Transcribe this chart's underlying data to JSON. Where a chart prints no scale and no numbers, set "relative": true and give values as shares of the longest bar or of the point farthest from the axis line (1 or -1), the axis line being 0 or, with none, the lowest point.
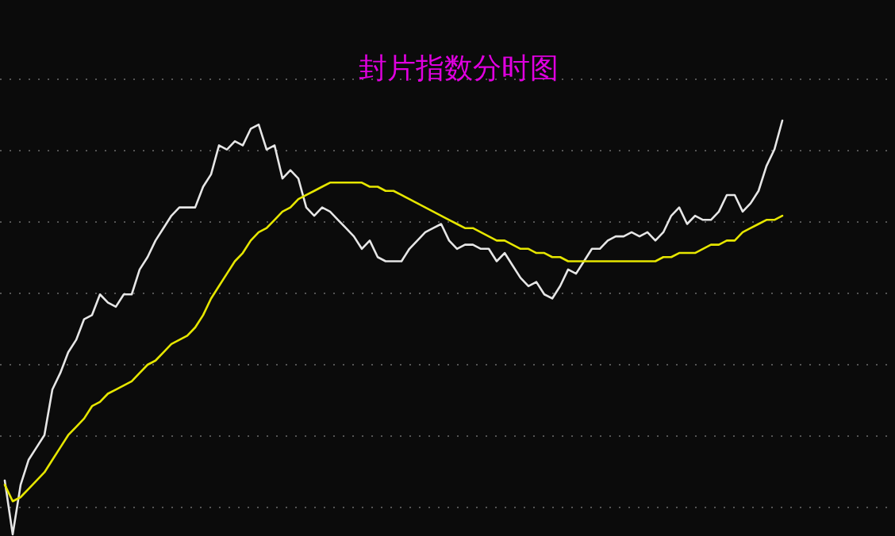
{
  "chart_data": {
    "type": "line",
    "title": "封片指数分时图",
    "relative": true,
    "grid": true,
    "categories": [
      null,
      null,
      null,
      null,
      null,
      null,
      null,
      null,
      null,
      null,
      null,
      null,
      null,
      null,
      null,
      null,
      null,
      null,
      null,
      null,
      null,
      null,
      null,
      null,
      null,
      null,
      null,
      null,
      null,
      null,
      null,
      null,
      null,
      null,
      null,
      null,
      null,
      null,
      null,
      null,
      null,
      null,
      null,
      null,
      null,
      null,
      null,
      null,
      null,
      null,
      null,
      null,
      null,
      null,
      null,
      null,
      null,
      null,
      null,
      null,
      null,
      null,
      null,
      null,
      null,
      null,
      null,
      null,
      null,
      null,
      null,
      null,
      null,
      null,
      null,
      null,
      null,
      null,
      null,
      null,
      null,
      null,
      null,
      null,
      null,
      null,
      null,
      null,
      null,
      null,
      null,
      null,
      null,
      null,
      null,
      null,
      null,
      null,
      null,
      null,
      null,
      null,
      null,
      null,
      null,
      null,
      null,
      null,
      null,
      null,
      null,
      null
    ],
    "series": [
      {
        "color": "#e6e6e6",
        "values": [
          0.13,
          0,
          0.12,
          0.18,
          0.21,
          0.24,
          0.35,
          0.39,
          0.44,
          0.47,
          0.52,
          0.53,
          0.58,
          0.56,
          0.55,
          0.58,
          0.58,
          0.64,
          0.67,
          0.71,
          0.74,
          0.77,
          0.79,
          0.79,
          0.79,
          0.84,
          0.87,
          0.94,
          0.93,
          0.95,
          0.94,
          0.98,
          0.99,
          0.93,
          0.94,
          0.86,
          0.88,
          0.86,
          0.79,
          0.77,
          0.79,
          0.78,
          0.76,
          0.74,
          0.72,
          0.69,
          0.71,
          0.67,
          0.66,
          0.66,
          0.66,
          0.69,
          0.71,
          0.73,
          0.74,
          0.75,
          0.71,
          0.69,
          0.7,
          0.7,
          0.69,
          0.69,
          0.66,
          0.68,
          0.65,
          0.62,
          0.6,
          0.61,
          0.58,
          0.57,
          0.6,
          0.64,
          0.63,
          0.66,
          0.69,
          0.69,
          0.71,
          0.72,
          0.72,
          0.73,
          0.72,
          0.73,
          0.71,
          0.73,
          0.77,
          0.79,
          0.75,
          0.77,
          0.76,
          0.76,
          0.78,
          0.82,
          0.82,
          0.78,
          0.8,
          0.83,
          0.89,
          0.93,
          1,
          null,
          null,
          null,
          null,
          null,
          null,
          null,
          null,
          null,
          null,
          null,
          null,
          null
        ]
      },
      {
        "color": "#e6e600",
        "values": [
          0.12,
          0.08,
          0.09,
          0.11,
          0.13,
          0.15,
          0.18,
          0.21,
          0.24,
          0.26,
          0.28,
          0.31,
          0.32,
          0.34,
          0.35,
          0.36,
          0.37,
          0.39,
          0.41,
          0.42,
          0.44,
          0.46,
          0.47,
          0.48,
          0.5,
          0.53,
          0.57,
          0.6,
          0.63,
          0.66,
          0.68,
          0.71,
          0.73,
          0.74,
          0.76,
          0.78,
          0.79,
          0.81,
          0.82,
          0.83,
          0.84,
          0.85,
          0.85,
          0.85,
          0.85,
          0.85,
          0.84,
          0.84,
          0.83,
          0.83,
          0.82,
          0.81,
          0.8,
          0.79,
          0.78,
          0.77,
          0.76,
          0.75,
          0.74,
          0.74,
          0.73,
          0.72,
          0.71,
          0.71,
          0.7,
          0.69,
          0.69,
          0.68,
          0.68,
          0.67,
          0.67,
          0.66,
          0.66,
          0.66,
          0.66,
          0.66,
          0.66,
          0.66,
          0.66,
          0.66,
          0.66,
          0.66,
          0.66,
          0.67,
          0.67,
          0.68,
          0.68,
          0.68,
          0.69,
          0.7,
          0.7,
          0.71,
          0.71,
          0.73,
          0.74,
          0.75,
          0.76,
          0.76,
          0.77,
          null,
          null,
          null,
          null,
          null,
          null,
          null,
          null,
          null,
          null,
          null,
          null,
          null
        ]
      }
    ]
  }
}
